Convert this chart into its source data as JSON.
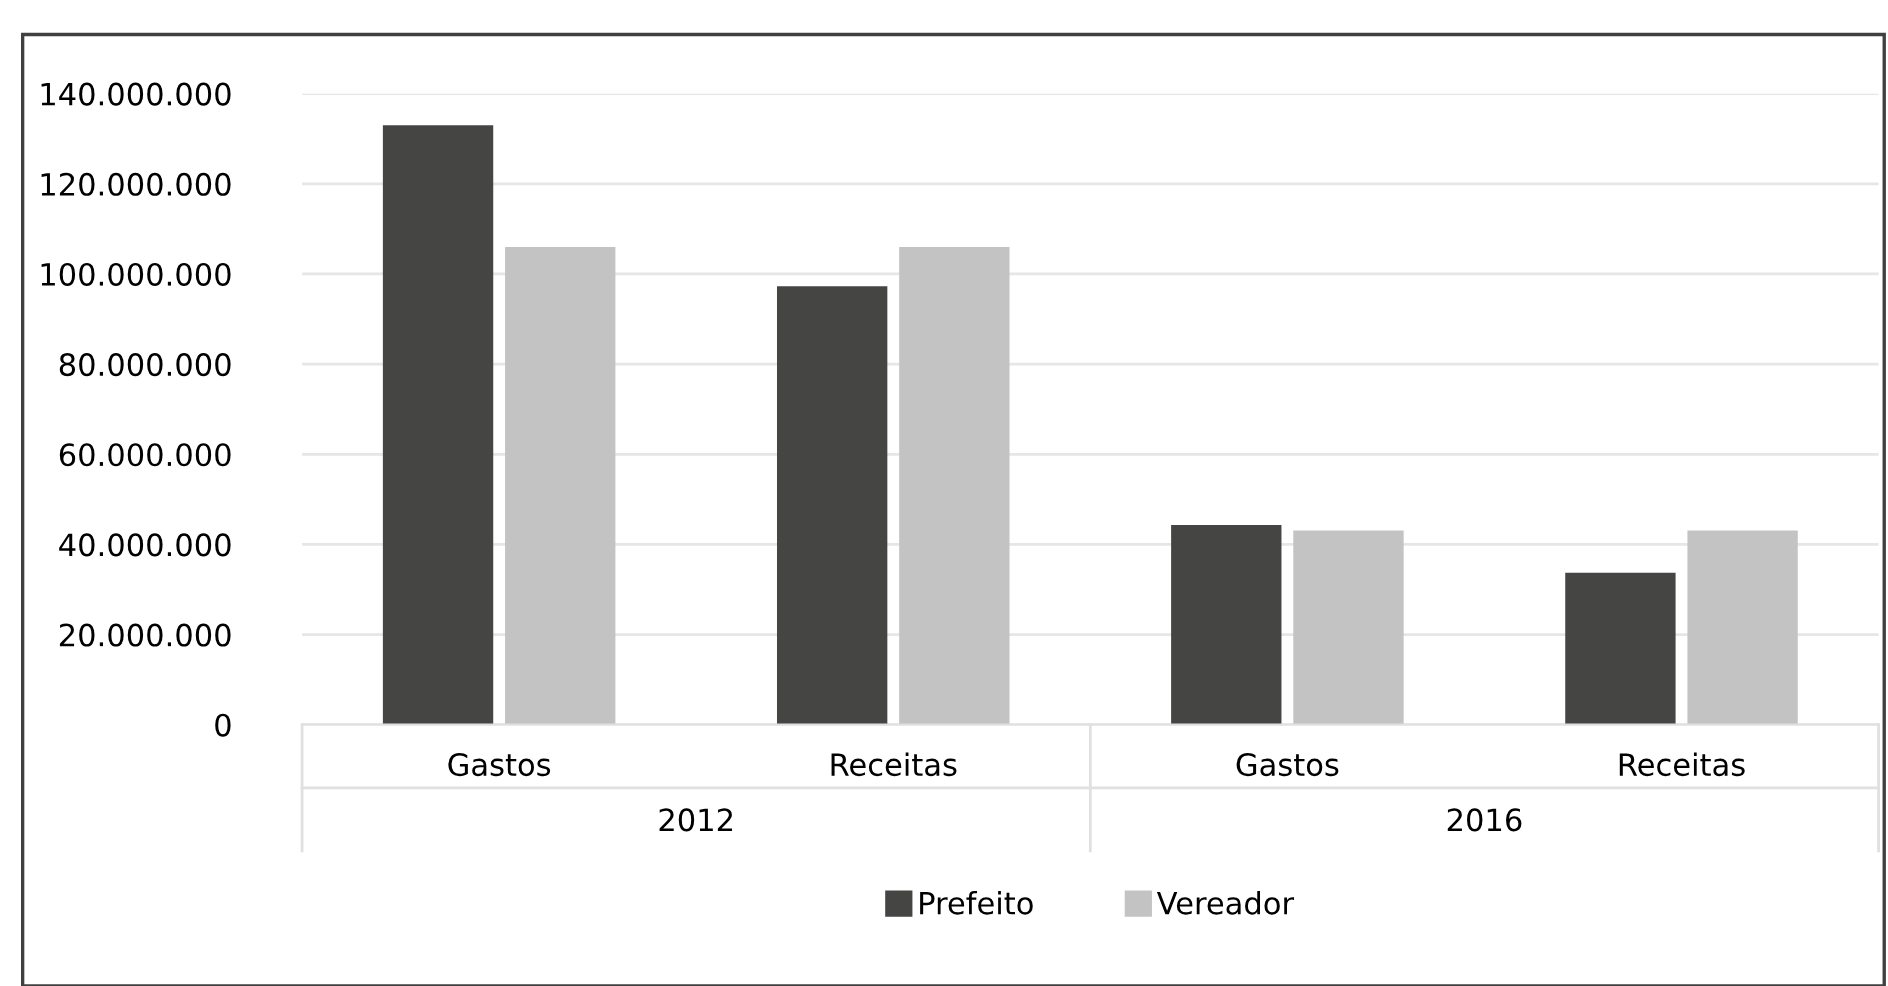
{
  "chart_data": {
    "type": "bar",
    "categories": [
      "Gastos",
      "Receitas",
      "Gastos",
      "Receitas"
    ],
    "series": [
      {
        "name": "Prefeito",
        "color": "#454543",
        "values": [
          133000000,
          97300000,
          44300000,
          33700000
        ]
      },
      {
        "name": "Vereador",
        "color": "#c3c3c3",
        "values": [
          106000000,
          106000000,
          43100000,
          43100000
        ]
      }
    ],
    "ylim": [
      0,
      140000000
    ],
    "yticks": [
      0,
      {
        "value": 20000000,
        "label": "20.000.000"
      },
      {
        "value": 40000000,
        "label": "40.000.000"
      },
      {
        "value": 60000000,
        "label": "60.000.000"
      },
      {
        "value": 80000000,
        "label": "80.000.000"
      },
      {
        "value": 100000000,
        "label": "100.000.000"
      },
      {
        "value": 120000000,
        "label": "120.000.000"
      },
      {
        "value": 140000000,
        "label": "140.000.000"
      }
    ],
    "annotations": [
      "2012",
      "2016"
    ],
    "grid": "y",
    "legend": "bottom"
  }
}
